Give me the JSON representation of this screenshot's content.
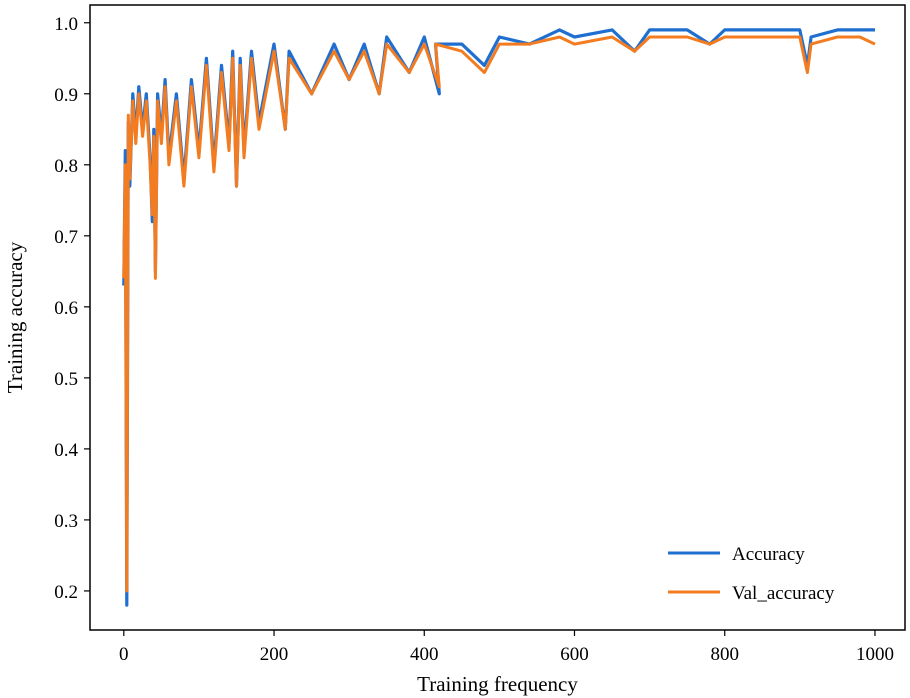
{
  "chart_data": {
    "type": "line",
    "title": "",
    "xlabel": "Training frequency",
    "ylabel": "Training accuracy",
    "xlim": [
      -45,
      1040
    ],
    "ylim": [
      0.145,
      1.025
    ],
    "xticks": [
      0,
      200,
      400,
      600,
      800,
      1000
    ],
    "yticks": [
      0.2,
      0.3,
      0.4,
      0.5,
      0.6,
      0.7,
      0.8,
      0.9,
      1.0
    ],
    "xtick_labels": [
      "0",
      "200",
      "400",
      "600",
      "800",
      "1000"
    ],
    "ytick_labels": [
      "0.2",
      "0.3",
      "0.4",
      "0.5",
      "0.6",
      "0.7",
      "0.8",
      "0.9",
      "1.0"
    ],
    "grid": false,
    "legend_position": "lower-right",
    "series": [
      {
        "name": "Accuracy",
        "color": "#1f6fd0",
        "x": [
          0,
          2,
          4,
          6,
          8,
          12,
          16,
          20,
          25,
          30,
          35,
          38,
          40,
          42,
          45,
          50,
          55,
          60,
          70,
          80,
          90,
          100,
          110,
          120,
          130,
          140,
          145,
          150,
          155,
          160,
          170,
          180,
          200,
          215,
          220,
          250,
          280,
          300,
          320,
          340,
          350,
          380,
          400,
          420,
          415,
          450,
          480,
          500,
          540,
          580,
          600,
          650,
          680,
          700,
          750,
          780,
          800,
          850,
          900,
          910,
          915,
          950,
          980,
          1000
        ],
        "y": [
          0.63,
          0.82,
          0.18,
          0.86,
          0.77,
          0.9,
          0.84,
          0.91,
          0.85,
          0.9,
          0.81,
          0.72,
          0.85,
          0.65,
          0.9,
          0.84,
          0.92,
          0.81,
          0.9,
          0.78,
          0.92,
          0.82,
          0.95,
          0.8,
          0.94,
          0.83,
          0.96,
          0.77,
          0.95,
          0.82,
          0.96,
          0.86,
          0.97,
          0.85,
          0.96,
          0.9,
          0.97,
          0.92,
          0.97,
          0.9,
          0.98,
          0.93,
          0.98,
          0.9,
          0.97,
          0.97,
          0.94,
          0.98,
          0.97,
          0.99,
          0.98,
          0.99,
          0.96,
          0.99,
          0.99,
          0.97,
          0.99,
          0.99,
          0.99,
          0.94,
          0.98,
          0.99,
          0.99,
          0.99
        ]
      },
      {
        "name": "Val_accuracy",
        "color": "#f47c20",
        "x": [
          0,
          2,
          4,
          6,
          8,
          12,
          16,
          20,
          25,
          30,
          35,
          38,
          40,
          42,
          45,
          50,
          55,
          60,
          70,
          80,
          90,
          100,
          110,
          120,
          130,
          140,
          145,
          150,
          155,
          160,
          170,
          180,
          200,
          215,
          220,
          250,
          280,
          300,
          320,
          340,
          350,
          380,
          400,
          420,
          415,
          450,
          480,
          500,
          540,
          580,
          600,
          650,
          680,
          700,
          750,
          780,
          800,
          850,
          900,
          910,
          915,
          950,
          980,
          1000
        ],
        "y": [
          0.64,
          0.8,
          0.2,
          0.87,
          0.78,
          0.89,
          0.83,
          0.9,
          0.84,
          0.89,
          0.8,
          0.73,
          0.84,
          0.64,
          0.89,
          0.83,
          0.91,
          0.8,
          0.89,
          0.77,
          0.91,
          0.81,
          0.94,
          0.79,
          0.93,
          0.82,
          0.95,
          0.77,
          0.94,
          0.81,
          0.95,
          0.85,
          0.96,
          0.85,
          0.95,
          0.9,
          0.96,
          0.92,
          0.96,
          0.9,
          0.97,
          0.93,
          0.97,
          0.91,
          0.97,
          0.96,
          0.93,
          0.97,
          0.97,
          0.98,
          0.97,
          0.98,
          0.96,
          0.98,
          0.98,
          0.97,
          0.98,
          0.98,
          0.98,
          0.93,
          0.97,
          0.98,
          0.98,
          0.97
        ]
      }
    ]
  }
}
